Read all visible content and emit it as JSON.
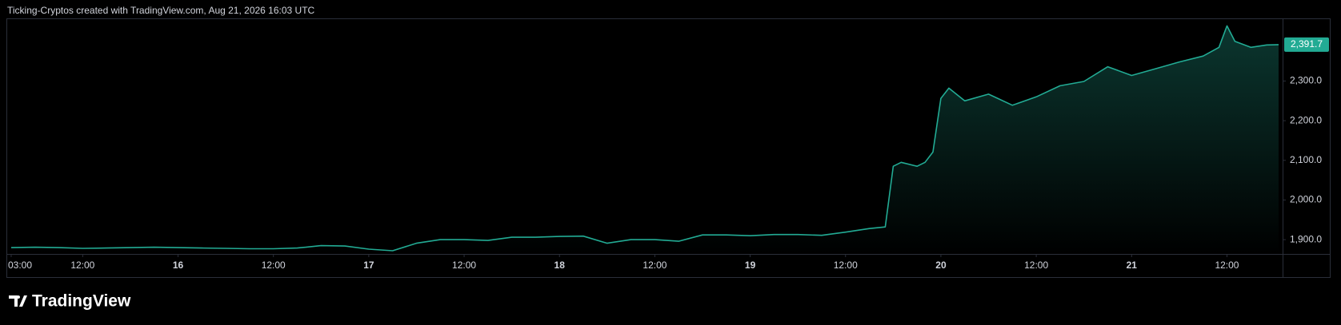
{
  "header": "Ticking-Cryptos created with TradingView.com, Aug 21, 2026 16:03 UTC",
  "logo": "TradingView",
  "chart_data": {
    "type": "area",
    "color": "#22ab94",
    "x": [
      3,
      6,
      9,
      12,
      15,
      18,
      21,
      24,
      27,
      30,
      33,
      36,
      39,
      42,
      45,
      48,
      51,
      54,
      57,
      60,
      63,
      66,
      69,
      72,
      75,
      78,
      81,
      84,
      87,
      90,
      93,
      96,
      99,
      102,
      105,
      108,
      111,
      113,
      114,
      115,
      117,
      118,
      119,
      120,
      121,
      123,
      126,
      129,
      132,
      135,
      138,
      141,
      144,
      147,
      150,
      153,
      155,
      156,
      157,
      159,
      161,
      162.5
    ],
    "values": [
      1880,
      1881,
      1880,
      1878,
      1879,
      1880,
      1881,
      1880,
      1879,
      1878,
      1877,
      1877,
      1879,
      1885,
      1884,
      1876,
      1872,
      1891,
      1900,
      1900,
      1898,
      1906,
      1906,
      1908,
      1909,
      1891,
      1900,
      1900,
      1896,
      1912,
      1912,
      1910,
      1913,
      1913,
      1911,
      1919,
      1928,
      1932,
      2085,
      2095,
      2085,
      2095,
      2121,
      2256,
      2282,
      2250,
      2267,
      2239,
      2260,
      2288,
      2299,
      2336,
      2314,
      2331,
      2348,
      2363,
      2385,
      2439,
      2400,
      2385,
      2391,
      2391.7
    ],
    "xlim": [
      2.5,
      163
    ],
    "xticks": [
      {
        "value": 3,
        "label": "03:00"
      },
      {
        "value": 12,
        "label": "12:00"
      },
      {
        "value": 24,
        "label": "16"
      },
      {
        "value": 36,
        "label": "12:00"
      },
      {
        "value": 48,
        "label": "17"
      },
      {
        "value": 60,
        "label": "12:00"
      },
      {
        "value": 72,
        "label": "18"
      },
      {
        "value": 84,
        "label": "12:00"
      },
      {
        "value": 96,
        "label": "19"
      },
      {
        "value": 108,
        "label": "12:00"
      },
      {
        "value": 120,
        "label": "20"
      },
      {
        "value": 132,
        "label": "12:00"
      },
      {
        "value": 144,
        "label": "21"
      },
      {
        "value": 156,
        "label": "12:00"
      }
    ],
    "ylim": [
      1864,
      2456
    ],
    "yticks": [
      {
        "value": 1900,
        "label": "1,900.0"
      },
      {
        "value": 2000,
        "label": "2,000.0"
      },
      {
        "value": 2100,
        "label": "2,100.0"
      },
      {
        "value": 2200,
        "label": "2,200.0"
      },
      {
        "value": 2300,
        "label": "2,300.0"
      }
    ],
    "last_price": {
      "value": 2391.7,
      "label": "2,391.7"
    }
  }
}
